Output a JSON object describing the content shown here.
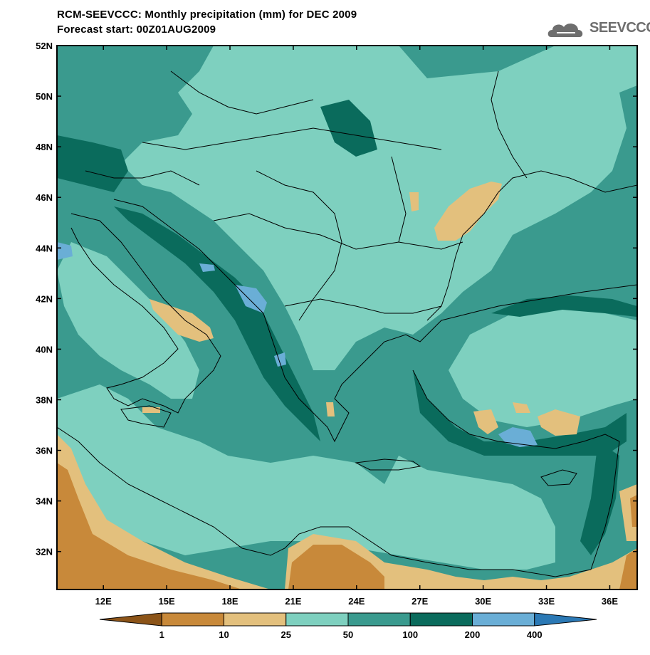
{
  "header": {
    "title": "RCM-SEEVCCC: Monthly precipitation (mm) for DEC 2009",
    "subtitle": "Forecast start: 00Z01AUG2009"
  },
  "logo": {
    "text": "SEEVCCC",
    "icon": "cloud-icon"
  },
  "map": {
    "lon_range": [
      9.8,
      37.3
    ],
    "lat_range": [
      30.5,
      52.0
    ],
    "lat_ticks": [
      "52N",
      "50N",
      "48N",
      "46N",
      "44N",
      "42N",
      "40N",
      "38N",
      "36N",
      "34N",
      "32N"
    ],
    "lat_tick_values": [
      52,
      50,
      48,
      46,
      44,
      42,
      40,
      38,
      36,
      34,
      32
    ],
    "lon_ticks": [
      "12E",
      "15E",
      "18E",
      "21E",
      "24E",
      "27E",
      "30E",
      "33E",
      "36E"
    ],
    "lon_tick_values": [
      12,
      15,
      18,
      21,
      24,
      27,
      30,
      33,
      36
    ]
  },
  "colorbar": {
    "labels": [
      "1",
      "10",
      "25",
      "50",
      "100",
      "200",
      "400"
    ],
    "colors": [
      "#8c5418",
      "#c8893a",
      "#e3c07d",
      "#7ed0bf",
      "#3a9a8e",
      "#0a6b5c",
      "#6aaed6",
      "#2b79b5"
    ]
  },
  "palette": {
    "lt1": "#8c5418",
    "c1_10": "#c8893a",
    "c10_25": "#e3c07d",
    "c25_50": "#7ed0bf",
    "c50_100": "#3a9a8e",
    "c100_200": "#0a6b5c",
    "c200_400": "#6aaed6",
    "gt400": "#2b79b5"
  }
}
